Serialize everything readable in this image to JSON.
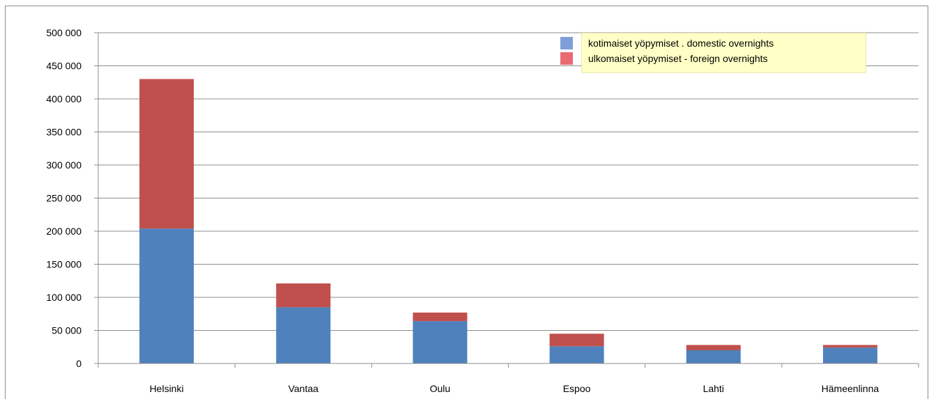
{
  "chart_data": {
    "type": "bar",
    "stacked": true,
    "categories": [
      "Helsinki",
      "Vantaa",
      "Oulu",
      "Espoo",
      "Lahti",
      "Hämeenlinna"
    ],
    "series": [
      {
        "name": "kotimaiset yöpymiset . domestic overnights",
        "color": "#4f81bd",
        "values": [
          204000,
          85000,
          64000,
          26000,
          20000,
          24000
        ]
      },
      {
        "name": "ulkomaiset yöpymiset - foreign overnights",
        "color": "#c0504d",
        "values": [
          226000,
          36000,
          13000,
          19000,
          8000,
          4000
        ]
      }
    ],
    "legend_swatch_colors": [
      "#7f9fd8",
      "#e86b72"
    ],
    "ylim": [
      0,
      500000
    ],
    "yticks": [
      0,
      50000,
      100000,
      150000,
      200000,
      250000,
      300000,
      350000,
      400000,
      450000,
      500000
    ],
    "ytick_labels": [
      "0",
      "50 000",
      "100 000",
      "150 000",
      "200 000",
      "250 000",
      "300 000",
      "350 000",
      "400 000",
      "450 000",
      "500 000"
    ],
    "grid": true,
    "legend_position": "top-right"
  }
}
